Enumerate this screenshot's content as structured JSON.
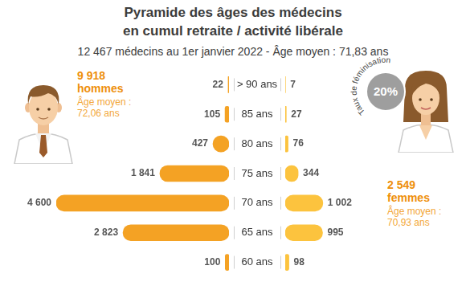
{
  "chart_data": {
    "type": "bar",
    "orientation": "horizontal",
    "title": [
      "Pyramide des âges des médecins",
      "en cumul retraite / activité libérale"
    ],
    "subtitle": "12 467 médecins au 1er janvier 2022 - Âge moyen : 71,83 ans",
    "categories": [
      "> 90 ans",
      "85 ans",
      "80 ans",
      "75 ans",
      "70 ans",
      "65 ans",
      "60 ans"
    ],
    "series": [
      {
        "name": "hommes",
        "color": "#f4a224",
        "values": [
          22,
          105,
          427,
          1841,
          4600,
          2823,
          100
        ],
        "value_labels": [
          "22",
          "105",
          "427",
          "1 841",
          "4 600",
          "2 823",
          "100"
        ],
        "count_label": "9 918",
        "mean_age_label": "Âge moyen : 72,06 ans"
      },
      {
        "name": "femmes",
        "color": "#fcc33e",
        "values": [
          7,
          27,
          76,
          344,
          1002,
          995,
          98
        ],
        "value_labels": [
          "7",
          "27",
          "76",
          "344",
          "1 002",
          "995",
          "98"
        ],
        "count_label": "2 549",
        "mean_age_label": "Âge moyen : 70,93 ans"
      }
    ],
    "feminization_label": "20%",
    "feminization_title": "Taux de féminisation",
    "data_labels": true
  }
}
